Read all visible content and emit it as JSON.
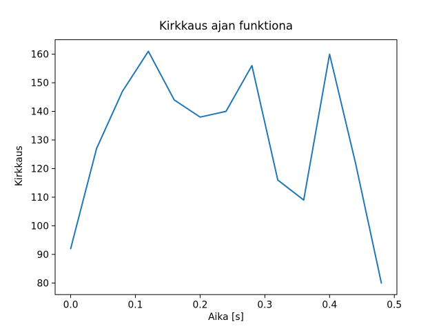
{
  "colors": {
    "background": "#ffffff",
    "spine": "#000000",
    "text": "#000000",
    "line": "#1f77b4"
  },
  "chart_data": {
    "type": "line",
    "title": "Kirkkaus ajan funktiona",
    "xlabel": "Aika [s]",
    "ylabel": "Kirkkaus",
    "x": [
      0.0,
      0.04,
      0.08,
      0.12,
      0.16,
      0.2,
      0.24,
      0.28,
      0.32,
      0.36,
      0.4,
      0.44,
      0.48
    ],
    "y": [
      92,
      127,
      147,
      161,
      144,
      138,
      140,
      156,
      116,
      109,
      160,
      122,
      80
    ],
    "xlim": [
      -0.024,
      0.504
    ],
    "ylim": [
      75.95,
      165.05
    ],
    "xticks": [
      0.0,
      0.1,
      0.2,
      0.3,
      0.4,
      0.5
    ],
    "xtick_labels": [
      "0.0",
      "0.1",
      "0.2",
      "0.3",
      "0.4",
      "0.5"
    ],
    "yticks": [
      80,
      90,
      100,
      110,
      120,
      130,
      140,
      150,
      160
    ],
    "ytick_labels": [
      "80",
      "90",
      "100",
      "110",
      "120",
      "130",
      "140",
      "150",
      "160"
    ],
    "line_color": "#1f77b4",
    "grid": false,
    "legend": false,
    "markers": false
  }
}
